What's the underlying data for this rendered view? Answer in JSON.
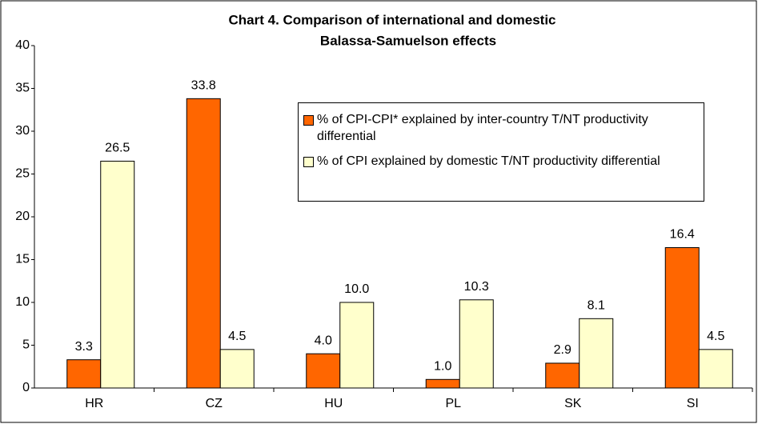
{
  "chart_data": {
    "type": "bar",
    "title": [
      "Chart 4. Comparison of international and domestic",
      "Balassa-Samuelson effects"
    ],
    "categories": [
      "HR",
      "CZ",
      "HU",
      "PL",
      "SK",
      "SI"
    ],
    "series": [
      {
        "name": "% of CPI-CPI* explained by inter-country T/NT productivity differential",
        "color": "#ff6600",
        "values": [
          3.3,
          33.8,
          4.0,
          1.0,
          2.9,
          16.4
        ],
        "value_labels": [
          "3.3",
          "33.8",
          "4.0",
          "1.0",
          "2.9",
          "16.4"
        ]
      },
      {
        "name": "% of CPI explained by domestic T/NT productivity differential",
        "color": "#ffffcc",
        "values": [
          26.5,
          4.5,
          10.0,
          10.3,
          8.1,
          4.5
        ],
        "value_labels": [
          "26.5",
          "4.5",
          "10.0",
          "10.3",
          "8.1",
          "4.5"
        ]
      }
    ],
    "ylim": [
      0,
      40
    ],
    "yticks": [
      0,
      5,
      10,
      15,
      20,
      25,
      30,
      35,
      40
    ],
    "legend": "top-right"
  }
}
